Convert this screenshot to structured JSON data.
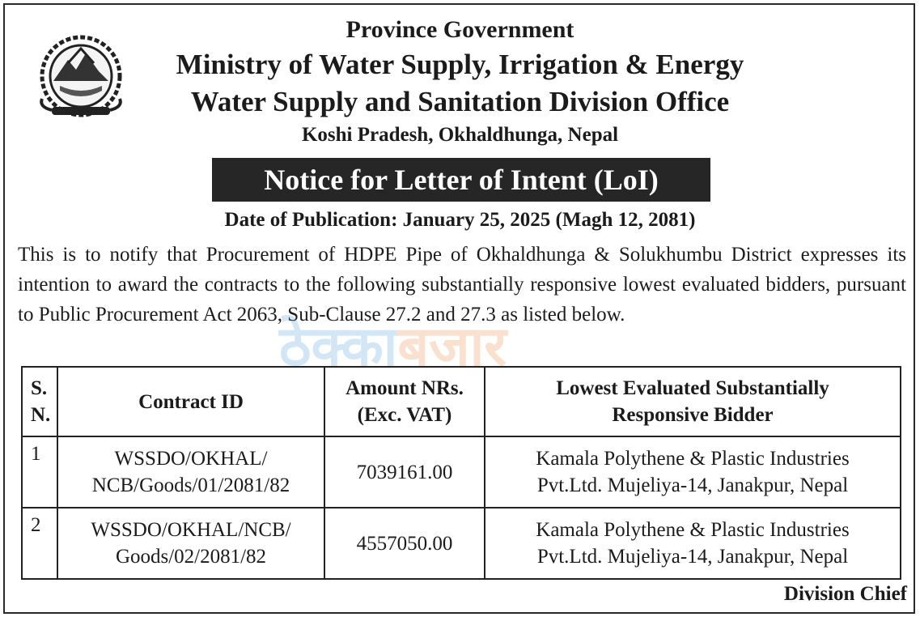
{
  "header": {
    "line1": "Province Government",
    "line2": "Ministry of Water Supply, Irrigation & Energy",
    "line3": "Water Supply and Sanitation Division Office",
    "line4": "Koshi Pradesh, Okhaldhunga, Nepal"
  },
  "notice_title": "Notice for Letter of Intent (LoI)",
  "publication_date": "Date of Publication: January 25, 2025 (Magh 12, 2081)",
  "body_text": "This is to notify that Procurement of HDPE Pipe of Okhaldhunga & Solukhumbu District expresses its intention to award the contracts to the following substantially responsive lowest evaluated bidders, pursuant to Public Procurement Act 2063, Sub-Clause 27.2 and 27.3 as listed below.",
  "watermark": {
    "part1": "ठेक्का",
    "part2": "बजार"
  },
  "table": {
    "headers": {
      "sn_line1": "S.",
      "sn_line2": "N.",
      "contract_id": "Contract ID",
      "amount_line1": "Amount NRs.",
      "amount_line2": "(Exc. VAT)",
      "bidder_line1": "Lowest Evaluated Substantially",
      "bidder_line2": "Responsive Bidder"
    },
    "rows": [
      {
        "sn": "1",
        "contract_id_line1": "WSSDO/OKHAL/",
        "contract_id_line2": "NCB/Goods/01/2081/82",
        "amount": "7039161.00",
        "bidder_line1": "Kamala Polythene & Plastic Industries",
        "bidder_line2": "Pvt.Ltd. Mujeliya-14, Janakpur, Nepal"
      },
      {
        "sn": "2",
        "contract_id_line1": "WSSDO/OKHAL/NCB/",
        "contract_id_line2": "Goods/02/2081/82",
        "amount": "4557050.00",
        "bidder_line1": "Kamala Polythene & Plastic Industries",
        "bidder_line2": "Pvt.Ltd. Mujeliya-14, Janakpur, Nepal"
      }
    ]
  },
  "signature": "Division Chief",
  "colors": {
    "text": "#1b1b1b",
    "title_bg": "#262626",
    "watermark_blue": "#3a8fd6",
    "watermark_orange": "#e8742a"
  },
  "icons": {
    "emblem": "nepal-government-emblem-icon"
  }
}
